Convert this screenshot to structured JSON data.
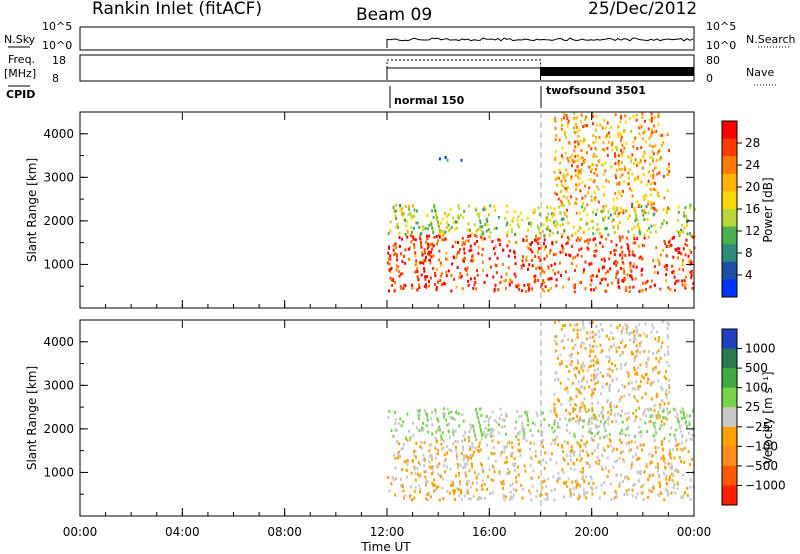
{
  "header": {
    "station": "Rankin Inlet (fitACF)",
    "beam": "Beam 09",
    "date": "25/Dec/2012"
  },
  "strips": {
    "nsky_label": "N.Sky",
    "nsky_ticks": [
      "10^5",
      "10^0"
    ],
    "nsky_right_ticks": [
      "10^5",
      "10^0"
    ],
    "nsearch_label": "N.Search",
    "freq_label_1": "Freq.",
    "freq_label_2": "[MHz]",
    "freq_ticks": [
      "18",
      "8"
    ],
    "nave_ticks": [
      "80",
      "0"
    ],
    "nave_label": "Nave",
    "cpid_label": "CPID",
    "cpid_modes": [
      "normal 150",
      "twofsound 3501"
    ]
  },
  "panels": {
    "ylabel": "Slant Range [km]",
    "xlabel": "Time UT",
    "x_ticks": [
      "00:00",
      "04:00",
      "08:00",
      "12:00",
      "16:00",
      "20:00",
      "00:00"
    ],
    "y_ticks": [
      "1000",
      "2000",
      "3000",
      "4000"
    ]
  },
  "power_colorbar": {
    "label": "Power [dB]",
    "ticks": [
      "28",
      "24",
      "20",
      "16",
      "12",
      "8",
      "4"
    ],
    "colors": [
      "#ff0000",
      "#ff3b00",
      "#ff7a00",
      "#ffb400",
      "#ffd800",
      "#b8d63c",
      "#4caf50",
      "#2e8b7a",
      "#1f4fa0",
      "#0033ff"
    ]
  },
  "velocity_colorbar": {
    "label": "Velocity [m s⁻¹]",
    "ticks": [
      "1000",
      "500",
      "100",
      "25",
      "−25",
      "−100",
      "−500",
      "−1000"
    ],
    "colors": [
      "#2040c0",
      "#2a7a50",
      "#3faa3f",
      "#77d44a",
      "#c8c8c8",
      "#ffa000",
      "#ff8c1a",
      "#ff5a00",
      "#ff2000"
    ]
  },
  "chart_data": [
    {
      "type": "heatmap",
      "title": "Power",
      "xlabel": "Time UT",
      "ylabel": "Slant Range [km]",
      "xlim": [
        "00:00",
        "24:00"
      ],
      "ylim": [
        0,
        4500
      ],
      "colorbar_range": [
        0,
        30
      ],
      "data_present_from": "12:00",
      "mode_change_at": "18:00",
      "bands": [
        {
          "t0": 12.0,
          "t1": 24.0,
          "r0": 400,
          "r1": 1700,
          "dominant_power_db": 26
        },
        {
          "t0": 12.0,
          "t1": 24.0,
          "r0": 1700,
          "r1": 2400,
          "dominant_power_db": 14
        },
        {
          "t0": 14.0,
          "t1": 15.0,
          "r0": 3400,
          "r1": 3500,
          "dominant_power_db": 8
        },
        {
          "t0": 18.5,
          "t1": 23.0,
          "r0": 2200,
          "r1": 4500,
          "dominant_power_db": 20
        }
      ]
    },
    {
      "type": "heatmap",
      "title": "Velocity",
      "xlabel": "Time UT",
      "ylabel": "Slant Range [km]",
      "xlim": [
        "00:00",
        "24:00"
      ],
      "ylim": [
        0,
        4500
      ],
      "colorbar_range": [
        -1000,
        1000
      ],
      "data_present_from": "12:00",
      "mode_change_at": "18:00",
      "bands": [
        {
          "t0": 12.0,
          "t1": 24.0,
          "r0": 400,
          "r1": 1800,
          "dominant_velocity": -100
        },
        {
          "t0": 12.0,
          "t1": 24.0,
          "r0": 1800,
          "r1": 2500,
          "dominant_velocity": 100
        },
        {
          "t0": 18.5,
          "t1": 23.0,
          "r0": 2200,
          "r1": 4500,
          "dominant_velocity": -100
        }
      ]
    }
  ]
}
